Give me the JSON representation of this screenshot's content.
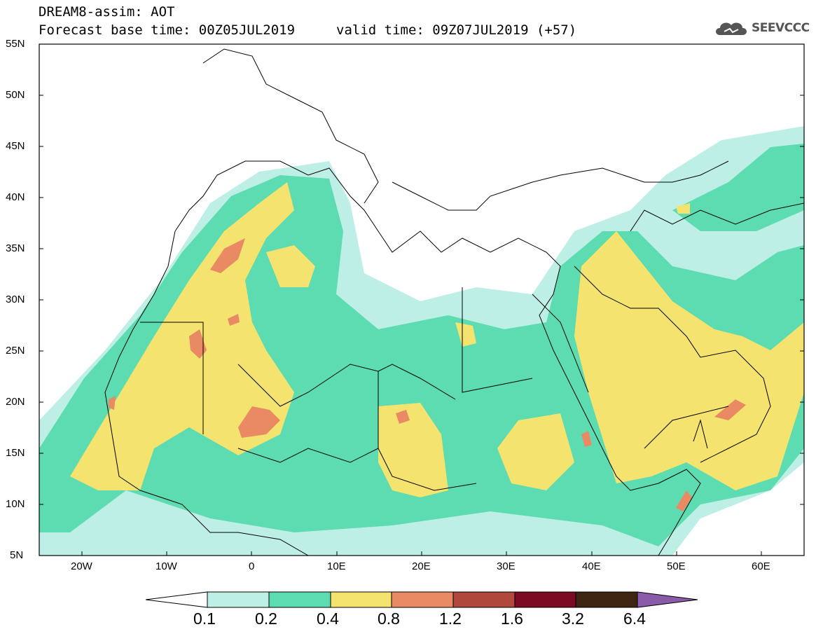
{
  "title": {
    "line1": "DREAM8-assim: AOT",
    "line2": "Forecast base time: 00Z05JUL2019",
    "valid": "valid time: 09Z07JUL2019 (+57)"
  },
  "logo": {
    "text": "SEEVCCC",
    "icon": "cloud-icon"
  },
  "lat_labels": [
    "55N",
    "50N",
    "45N",
    "40N",
    "35N",
    "30N",
    "25N",
    "20N",
    "15N",
    "10N",
    "5N"
  ],
  "lon_labels": [
    "20W",
    "10W",
    "0",
    "10E",
    "20E",
    "30E",
    "40E",
    "50E",
    "60E"
  ],
  "colorbar": {
    "labels": [
      "0.1",
      "0.2",
      "0.4",
      "0.8",
      "1.2",
      "1.6",
      "3.2",
      "6.4"
    ],
    "colors": [
      "#ffffff",
      "#bdefe6",
      "#5cdcb0",
      "#f5e370",
      "#e98a64",
      "#b1483c",
      "#7d0a24",
      "#3d2512",
      "#8a5ba8"
    ]
  },
  "colors": {
    "c01": "#bdefe6",
    "c02": "#5cdcb0",
    "c04": "#f5e370",
    "c08": "#e98a64",
    "c12": "#b1483c"
  }
}
